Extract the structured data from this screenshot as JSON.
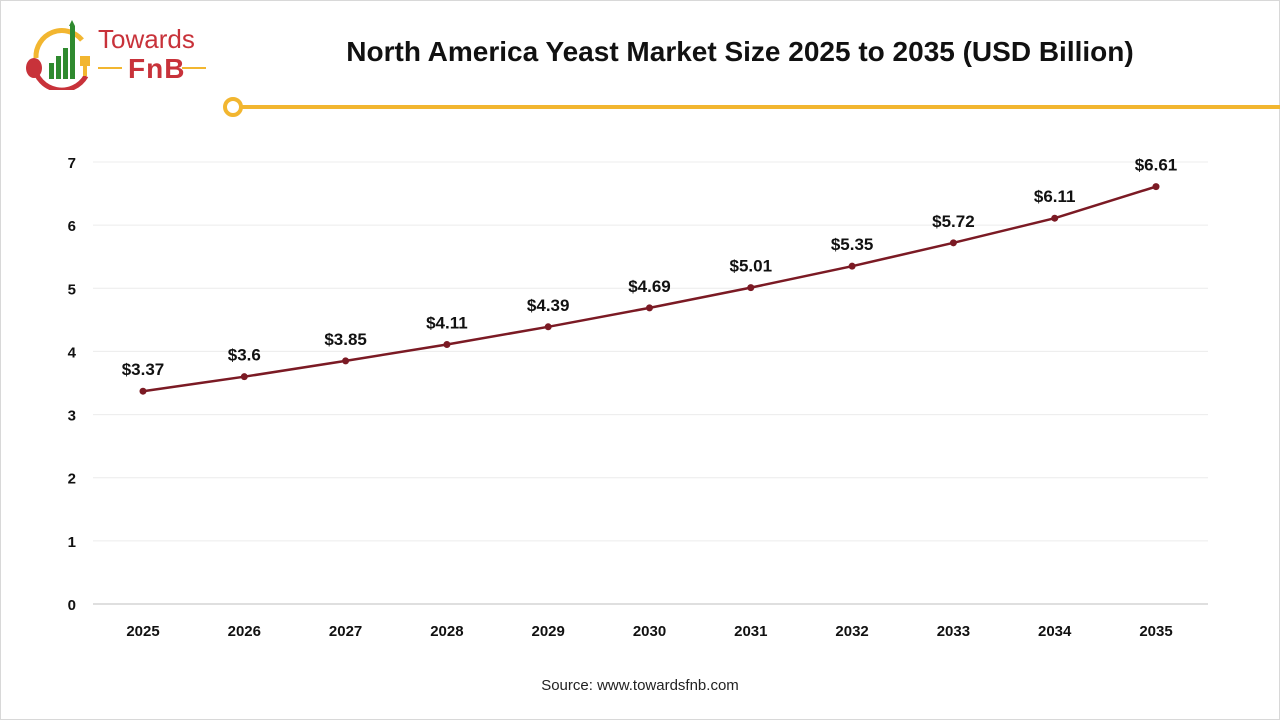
{
  "brand": {
    "line1": "Towards",
    "line2": "FnB"
  },
  "colors": {
    "line": "#7b1a24",
    "accent": "#f2b630",
    "brand_red": "#c8323a",
    "brand_green": "#2f8a2f"
  },
  "source": "Source: www.towardsfnb.com",
  "chart_data": {
    "type": "line",
    "title": "North America Yeast Market Size 2025 to 2035 (USD Billion)",
    "categories": [
      "2025",
      "2026",
      "2027",
      "2028",
      "2029",
      "2030",
      "2031",
      "2032",
      "2033",
      "2034",
      "2035"
    ],
    "values": [
      3.37,
      3.6,
      3.85,
      4.11,
      4.39,
      4.69,
      5.01,
      5.35,
      5.72,
      6.11,
      6.61
    ],
    "data_labels": [
      "$3.37",
      "$3.6",
      "$3.85",
      "$4.11",
      "$4.39",
      "$4.69",
      "$5.01",
      "$5.35",
      "$5.72",
      "$6.11",
      "$6.61"
    ],
    "yticks": [
      "0",
      "1",
      "2",
      "3",
      "4",
      "5",
      "6",
      "7"
    ],
    "ylim": [
      0,
      7
    ],
    "grid": true,
    "xlabel": "",
    "ylabel": ""
  }
}
